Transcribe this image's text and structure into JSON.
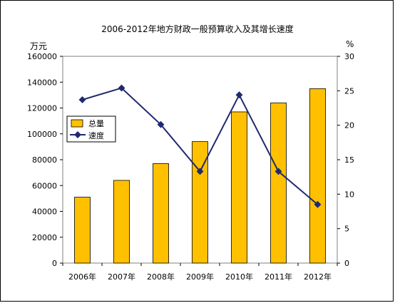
{
  "chart_data": {
    "type": "bar+line",
    "title": "2006-2012年地方财政一般预算收入及其增长速度",
    "categories": [
      "2006年",
      "2007年",
      "2008年",
      "2009年",
      "2010年",
      "2011年",
      "2012年"
    ],
    "left_axis": {
      "unit_label": "万元",
      "ylim": [
        0,
        160000
      ],
      "ticks": [
        "0",
        "20000",
        "40000",
        "60000",
        "80000",
        "100000",
        "120000",
        "140000",
        "160000"
      ]
    },
    "right_axis": {
      "unit_label": "%",
      "ylim": [
        0,
        30
      ],
      "ticks": [
        "0",
        "5",
        "10",
        "15",
        "20",
        "25",
        "30"
      ]
    },
    "series": [
      {
        "name": "总量",
        "type": "bar",
        "axis": "left",
        "color": "#FFC000",
        "values": [
          51000,
          64000,
          77000,
          94000,
          117000,
          124000,
          135000
        ]
      },
      {
        "name": "速度",
        "type": "line",
        "axis": "right",
        "color": "#1F2A6E",
        "values": [
          23.7,
          25.4,
          20.1,
          13.3,
          24.4,
          13.3,
          8.5
        ]
      }
    ],
    "legend_position": "left",
    "grid": false
  }
}
